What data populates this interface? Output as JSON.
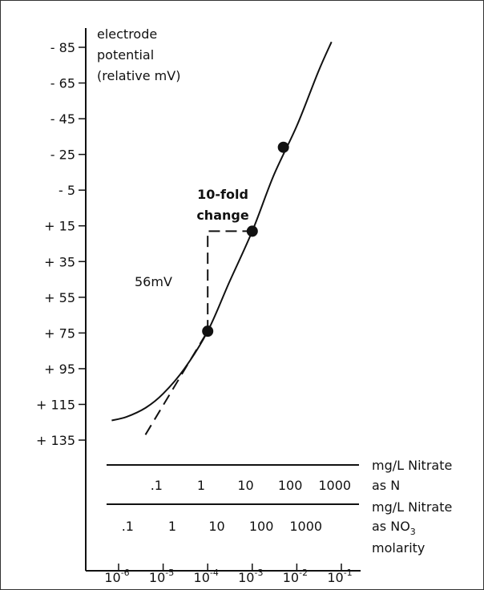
{
  "chart_data": {
    "type": "line",
    "title": "",
    "ylabel": [
      "electrode",
      "potential",
      "(relative mV)"
    ],
    "yticks": [
      "- 85",
      "- 65",
      "- 45",
      "- 25",
      "- 5",
      "+ 15",
      "+ 35",
      "+ 55",
      "+ 75",
      "+ 95",
      "+ 115",
      "+ 135"
    ],
    "ytick_values": [
      -85,
      -65,
      -45,
      -25,
      -5,
      15,
      35,
      55,
      75,
      95,
      115,
      135
    ],
    "ylim": [
      -85,
      135
    ],
    "y_inverted": true,
    "x_scale": "log",
    "xlabel": "molarity",
    "x_molarity_ticks": [
      {
        "base": "10",
        "exp": "-6",
        "value": 1e-06
      },
      {
        "base": "10",
        "exp": "-5",
        "value": 1e-05
      },
      {
        "base": "10",
        "exp": "-4",
        "value": 0.0001
      },
      {
        "base": "10",
        "exp": "-3",
        "value": 0.001
      },
      {
        "base": "10",
        "exp": "-2",
        "value": 0.01
      },
      {
        "base": "10",
        "exp": "-1",
        "value": 0.1
      }
    ],
    "nitrate_as_n_scale": {
      "label": [
        "mg/L Nitrate",
        "as N"
      ],
      "ticks": [
        {
          "label": ".1",
          "molarity": 7.1e-06
        },
        {
          "label": "1",
          "molarity": 7.1e-05
        },
        {
          "label": "10",
          "molarity": 0.00071
        },
        {
          "label": "100",
          "molarity": 0.0071
        },
        {
          "label": "1000",
          "molarity": 0.071
        }
      ]
    },
    "nitrate_as_no3_scale": {
      "label_line1": "mg/L Nitrate",
      "label_as": "as NO",
      "label_sub": "3",
      "ticks": [
        {
          "label": ".1",
          "molarity": 1.6e-06
        },
        {
          "label": "1",
          "molarity": 1.6e-05
        },
        {
          "label": "10",
          "molarity": 0.00016
        },
        {
          "label": "100",
          "molarity": 0.0016
        },
        {
          "label": "1000",
          "molarity": 0.016
        }
      ]
    },
    "series": [
      {
        "style": "solid",
        "points": [
          {
            "x": 7e-07,
            "y": 124
          },
          {
            "x": 1.5e-06,
            "y": 122
          },
          {
            "x": 4e-06,
            "y": 117
          },
          {
            "x": 1e-05,
            "y": 109
          },
          {
            "x": 3e-05,
            "y": 95
          },
          {
            "x": 0.0001,
            "y": 74
          },
          {
            "x": 0.0003,
            "y": 47
          },
          {
            "x": 0.001,
            "y": 18
          },
          {
            "x": 0.003,
            "y": -13
          },
          {
            "x": 0.01,
            "y": -41
          },
          {
            "x": 0.03,
            "y": -71
          },
          {
            "x": 0.06,
            "y": -88
          }
        ]
      },
      {
        "style": "dashed",
        "points": [
          {
            "x": 4e-06,
            "y": 132
          },
          {
            "x": 0.0001,
            "y": 74
          }
        ]
      }
    ],
    "marked_points": [
      {
        "x": 0.0001,
        "y": 74
      },
      {
        "x": 0.001,
        "y": 18
      },
      {
        "x": 0.005,
        "y": -29
      }
    ],
    "step_indicator": {
      "from": {
        "x": 0.0001,
        "y": 74
      },
      "corner": {
        "x": 0.0001,
        "y": 18
      },
      "to": {
        "x": 0.001,
        "y": 18
      }
    },
    "annotations": {
      "delta_mv": "56mV",
      "tenfold_line1": "10-fold",
      "tenfold_line2": "change"
    }
  }
}
